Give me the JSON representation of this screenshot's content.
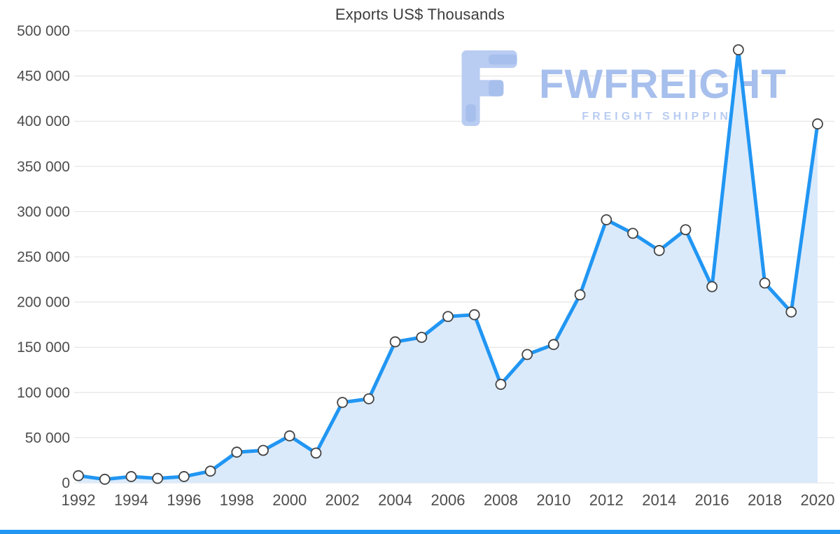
{
  "title": "Exports US$ Thousands",
  "watermark": {
    "brand": "FWFREIGHT",
    "tagline": "FREIGHT SHIPPING"
  },
  "colors": {
    "line": "#2196f3",
    "area_fill": "#daeafb",
    "marker_fill": "#ffffff",
    "marker_stroke": "#444444",
    "grid_line": "#e0e0e0",
    "axis_label": "#4d4d4d",
    "title": "#3d3d3d",
    "watermark_primary": "#a7bfec",
    "watermark_secondary": "#b9ccf2",
    "bottom_bar": "#2196f3"
  },
  "chart_data": {
    "type": "area",
    "title": "Exports US$ Thousands",
    "x": [
      1992,
      1993,
      1994,
      1995,
      1996,
      1997,
      1998,
      1999,
      2000,
      2001,
      2002,
      2003,
      2004,
      2005,
      2006,
      2007,
      2008,
      2009,
      2010,
      2011,
      2012,
      2013,
      2014,
      2015,
      2016,
      2017,
      2018,
      2019,
      2020
    ],
    "values": [
      8000,
      4000,
      7000,
      5000,
      7000,
      13000,
      34000,
      36000,
      52000,
      33000,
      89000,
      93000,
      156000,
      161000,
      184000,
      186000,
      109000,
      142000,
      153000,
      208000,
      291000,
      276000,
      257000,
      280000,
      217000,
      479000,
      221000,
      189000,
      397000
    ],
    "ylim": [
      0,
      500000
    ],
    "y_tick_step": 50000,
    "x_tick_step": 2,
    "y_tick_format": "space-thousands",
    "grid": "horizontal",
    "legend": "none",
    "marker": "circle"
  }
}
